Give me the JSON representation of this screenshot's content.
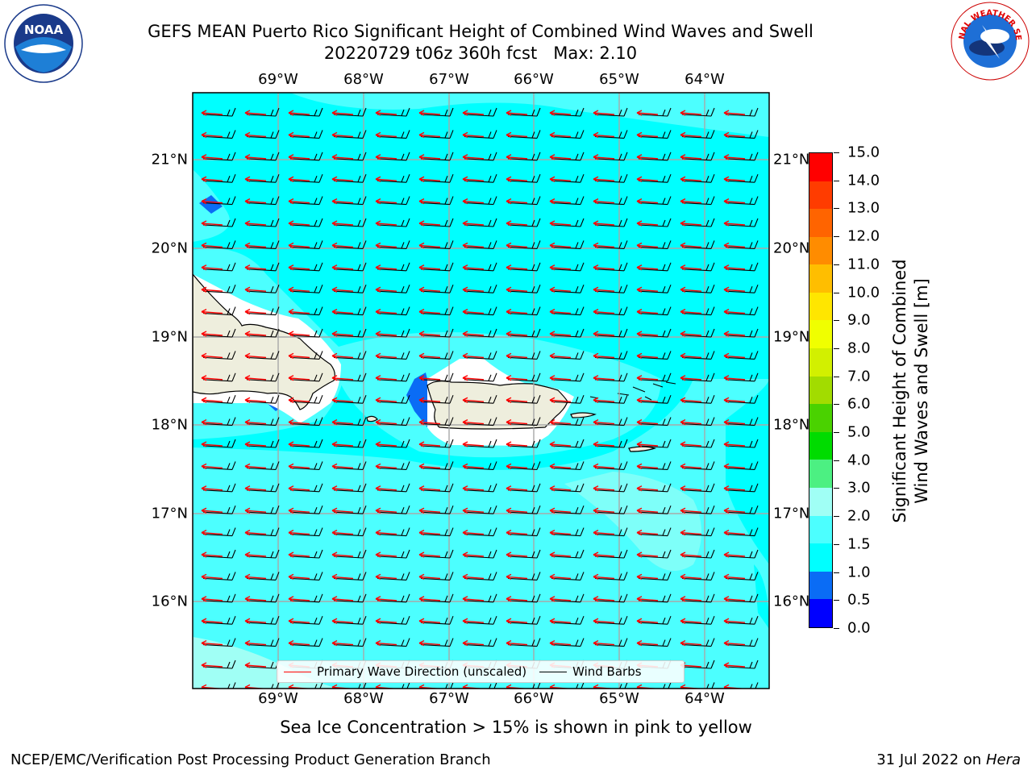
{
  "title": {
    "line1": "GEFS MEAN Puerto Rico Significant Height of Combined Wind Waves and Swell",
    "line2": "20220729 t06z 360h fcst   Max: 2.10"
  },
  "logos": {
    "noaa_text": "NOAA",
    "noaa_ring": "NATIONAL OCEANIC AND ATMOSPHERIC ADMINISTRATION · U.S. DEPARTMENT OF COMMERCE",
    "nws_ring": "NATIONAL WEATHER SERVICE"
  },
  "map": {
    "lon_labels": [
      "69°W",
      "68°W",
      "67°W",
      "66°W",
      "65°W",
      "64°W"
    ],
    "lat_labels": [
      "21°N",
      "20°N",
      "19°N",
      "18°N",
      "17°N",
      "16°N"
    ],
    "background_color": "#00ffff",
    "land_color": "#eeeedd"
  },
  "legend": {
    "wave_direction": "Primary Wave Direction (unscaled)",
    "wind_barbs": "Wind Barbs",
    "wave_color": "#ff0000",
    "barb_color": "#000000"
  },
  "colorbar": {
    "label_line1": "Significant Height of Combined",
    "label_line2": "Wind Waves and Swell [m]",
    "ticks": [
      "0.0",
      "0.5",
      "1.0",
      "1.5",
      "2.0",
      "3.0",
      "4.0",
      "5.0",
      "6.0",
      "7.0",
      "8.0",
      "9.0",
      "10.0",
      "11.0",
      "12.0",
      "13.0",
      "14.0",
      "15.0"
    ],
    "colors": [
      "#0000ff",
      "#0a6cf5",
      "#00ffff",
      "#4cffff",
      "#a0fff5",
      "#4cf082",
      "#00dc00",
      "#4ad200",
      "#a2dc00",
      "#d2f000",
      "#f0ff00",
      "#ffe600",
      "#ffbe00",
      "#ff8c00",
      "#ff6400",
      "#ff3c00",
      "#ff0000"
    ]
  },
  "caption": "Sea Ice Concentration > 15% is shown in pink to yellow",
  "footer": {
    "left": "NCEP/EMC/Verification Post Processing Product Generation Branch",
    "right_date": "31 Jul 2022 on ",
    "right_host": "Hera"
  }
}
